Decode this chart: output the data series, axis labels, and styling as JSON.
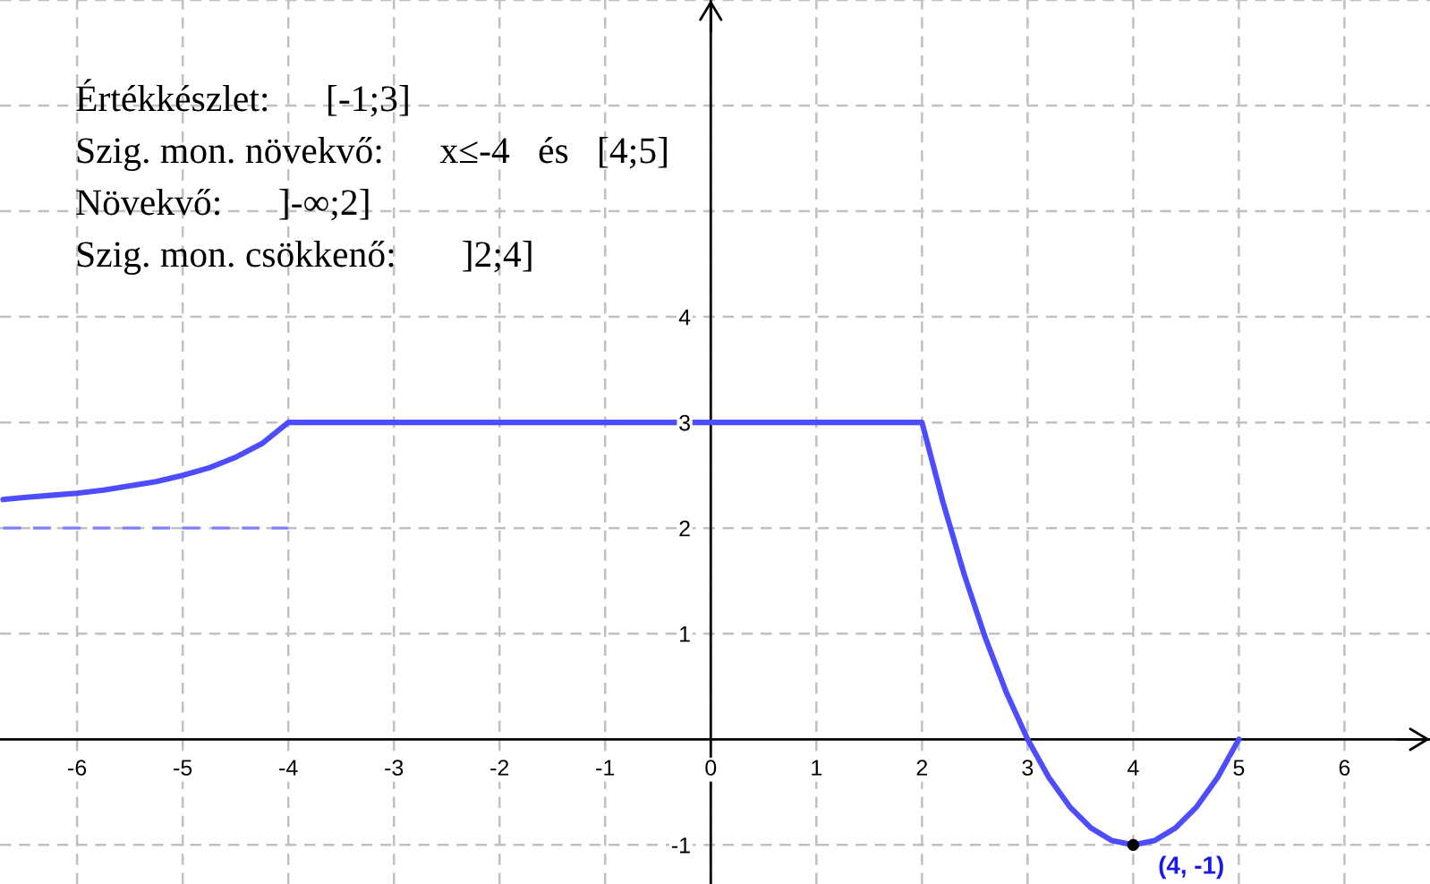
{
  "chart_data": {
    "type": "line",
    "annotations": [
      "Értékkészlet:      [-1;3]",
      "Szig. mon. növekvő:      x≤-4   és   [4;5]",
      "Növekvő:      ]-∞;2]",
      "Szig. mon. csökkenő:       ]2;4]",
      {
        "text": "(4, -1)",
        "x": 4,
        "y": -1
      }
    ],
    "series": [
      {
        "color": "#4d4dff",
        "x": [
          -6.7,
          -6.5,
          -6.25,
          -6,
          -5.75,
          -5.5,
          -5.25,
          -5,
          -4.75,
          -4.5,
          -4.25,
          -4,
          2,
          2.2,
          2.4,
          2.6,
          2.8,
          3,
          3.2,
          3.4,
          3.6,
          3.8,
          4,
          4.2,
          4.4,
          4.6,
          4.8,
          5
        ],
        "values": [
          2.27,
          2.29,
          2.31,
          2.33,
          2.36,
          2.4,
          2.44,
          2.5,
          2.57,
          2.67,
          2.8,
          3,
          3,
          2.24,
          1.56,
          0.96,
          0.44,
          0,
          -0.36,
          -0.64,
          -0.84,
          -0.96,
          -1,
          -0.96,
          -0.84,
          -0.64,
          -0.36,
          0
        ]
      },
      {
        "color": "#8080ff",
        "line_style": "dashed",
        "x": [
          -6.7,
          -4
        ],
        "values": [
          2,
          2
        ]
      },
      {
        "type": "scatter",
        "color": "#000000",
        "marker": "circle",
        "x": [
          4
        ],
        "values": [
          -1
        ]
      }
    ],
    "xlim": [
      -6.73,
      6.81
    ],
    "ylim": [
      -1.37,
      7.0
    ],
    "xticks": [
      -6,
      -5,
      -4,
      -3,
      -2,
      -1,
      0,
      1,
      2,
      3,
      4,
      5,
      6
    ],
    "yticks": [
      -1,
      1,
      2,
      3,
      4,
      {
        "value": 5,
        "label": null
      },
      {
        "value": 6,
        "label": null
      },
      {
        "value": 7,
        "label": null
      }
    ],
    "grid": true
  }
}
